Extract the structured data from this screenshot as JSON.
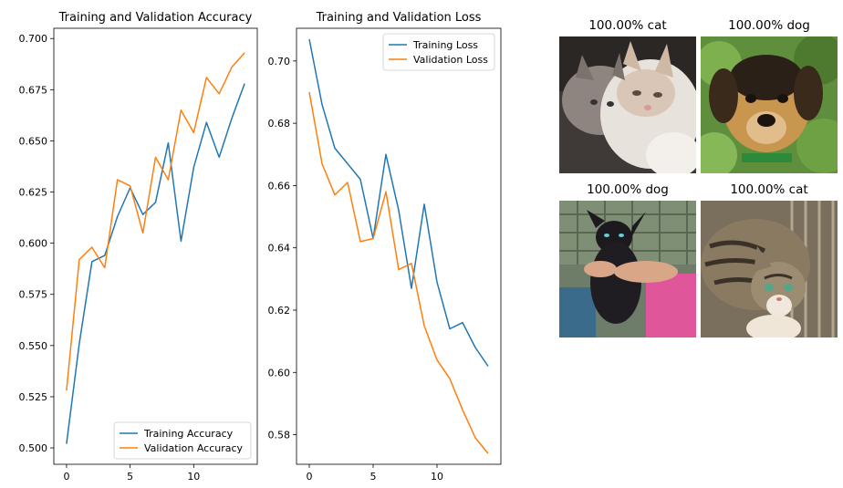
{
  "chart_data": [
    {
      "type": "line",
      "title": "Training and Validation Accuracy",
      "xlabel": "",
      "ylabel": "",
      "xlim": [
        -1,
        15
      ],
      "ylim": [
        0.492,
        0.705
      ],
      "x_ticks": [
        0,
        5,
        10
      ],
      "y_ticks": [
        0.5,
        0.525,
        0.55,
        0.575,
        0.6,
        0.625,
        0.65,
        0.675,
        0.7
      ],
      "y_tick_labels": [
        "0.500",
        "0.525",
        "0.550",
        "0.575",
        "0.600",
        "0.625",
        "0.650",
        "0.675",
        "0.700"
      ],
      "legend_position": "lower-right",
      "x": [
        0,
        1,
        2,
        3,
        4,
        5,
        6,
        7,
        8,
        9,
        10,
        11,
        12,
        13,
        14
      ],
      "series": [
        {
          "name": "Training Accuracy",
          "color": "#1f77b4",
          "values": [
            0.502,
            0.551,
            0.591,
            0.594,
            0.613,
            0.627,
            0.614,
            0.62,
            0.649,
            0.601,
            0.637,
            0.659,
            0.642,
            0.661,
            0.678
          ]
        },
        {
          "name": "Validation Accuracy",
          "color": "#ff7f0e",
          "values": [
            0.528,
            0.592,
            0.598,
            0.588,
            0.631,
            0.628,
            0.605,
            0.642,
            0.631,
            0.665,
            0.654,
            0.681,
            0.673,
            0.686,
            0.693
          ]
        }
      ]
    },
    {
      "type": "line",
      "title": "Training and Validation Loss",
      "xlabel": "",
      "ylabel": "",
      "xlim": [
        -1,
        15
      ],
      "ylim": [
        0.5705,
        0.7105
      ],
      "x_ticks": [
        0,
        5,
        10
      ],
      "y_ticks": [
        0.58,
        0.6,
        0.62,
        0.64,
        0.66,
        0.68,
        0.7
      ],
      "y_tick_labels": [
        "0.58",
        "0.60",
        "0.62",
        "0.64",
        "0.66",
        "0.68",
        "0.70"
      ],
      "legend_position": "upper-right",
      "x": [
        0,
        1,
        2,
        3,
        4,
        5,
        6,
        7,
        8,
        9,
        10,
        11,
        12,
        13,
        14
      ],
      "series": [
        {
          "name": "Training Loss",
          "color": "#1f77b4",
          "values": [
            0.707,
            0.686,
            0.672,
            0.667,
            0.662,
            0.643,
            0.67,
            0.652,
            0.627,
            0.654,
            0.629,
            0.614,
            0.616,
            0.608,
            0.602
          ]
        },
        {
          "name": "Validation Loss",
          "color": "#ff7f0e",
          "values": [
            0.69,
            0.667,
            0.657,
            0.661,
            0.642,
            0.643,
            0.658,
            0.633,
            0.635,
            0.615,
            0.604,
            0.598,
            0.588,
            0.579,
            0.574
          ]
        }
      ]
    }
  ],
  "predictions": [
    {
      "label": "100.00% cat"
    },
    {
      "label": "100.00% dog"
    },
    {
      "label": "100.00% dog"
    },
    {
      "label": "100.00% cat"
    }
  ]
}
